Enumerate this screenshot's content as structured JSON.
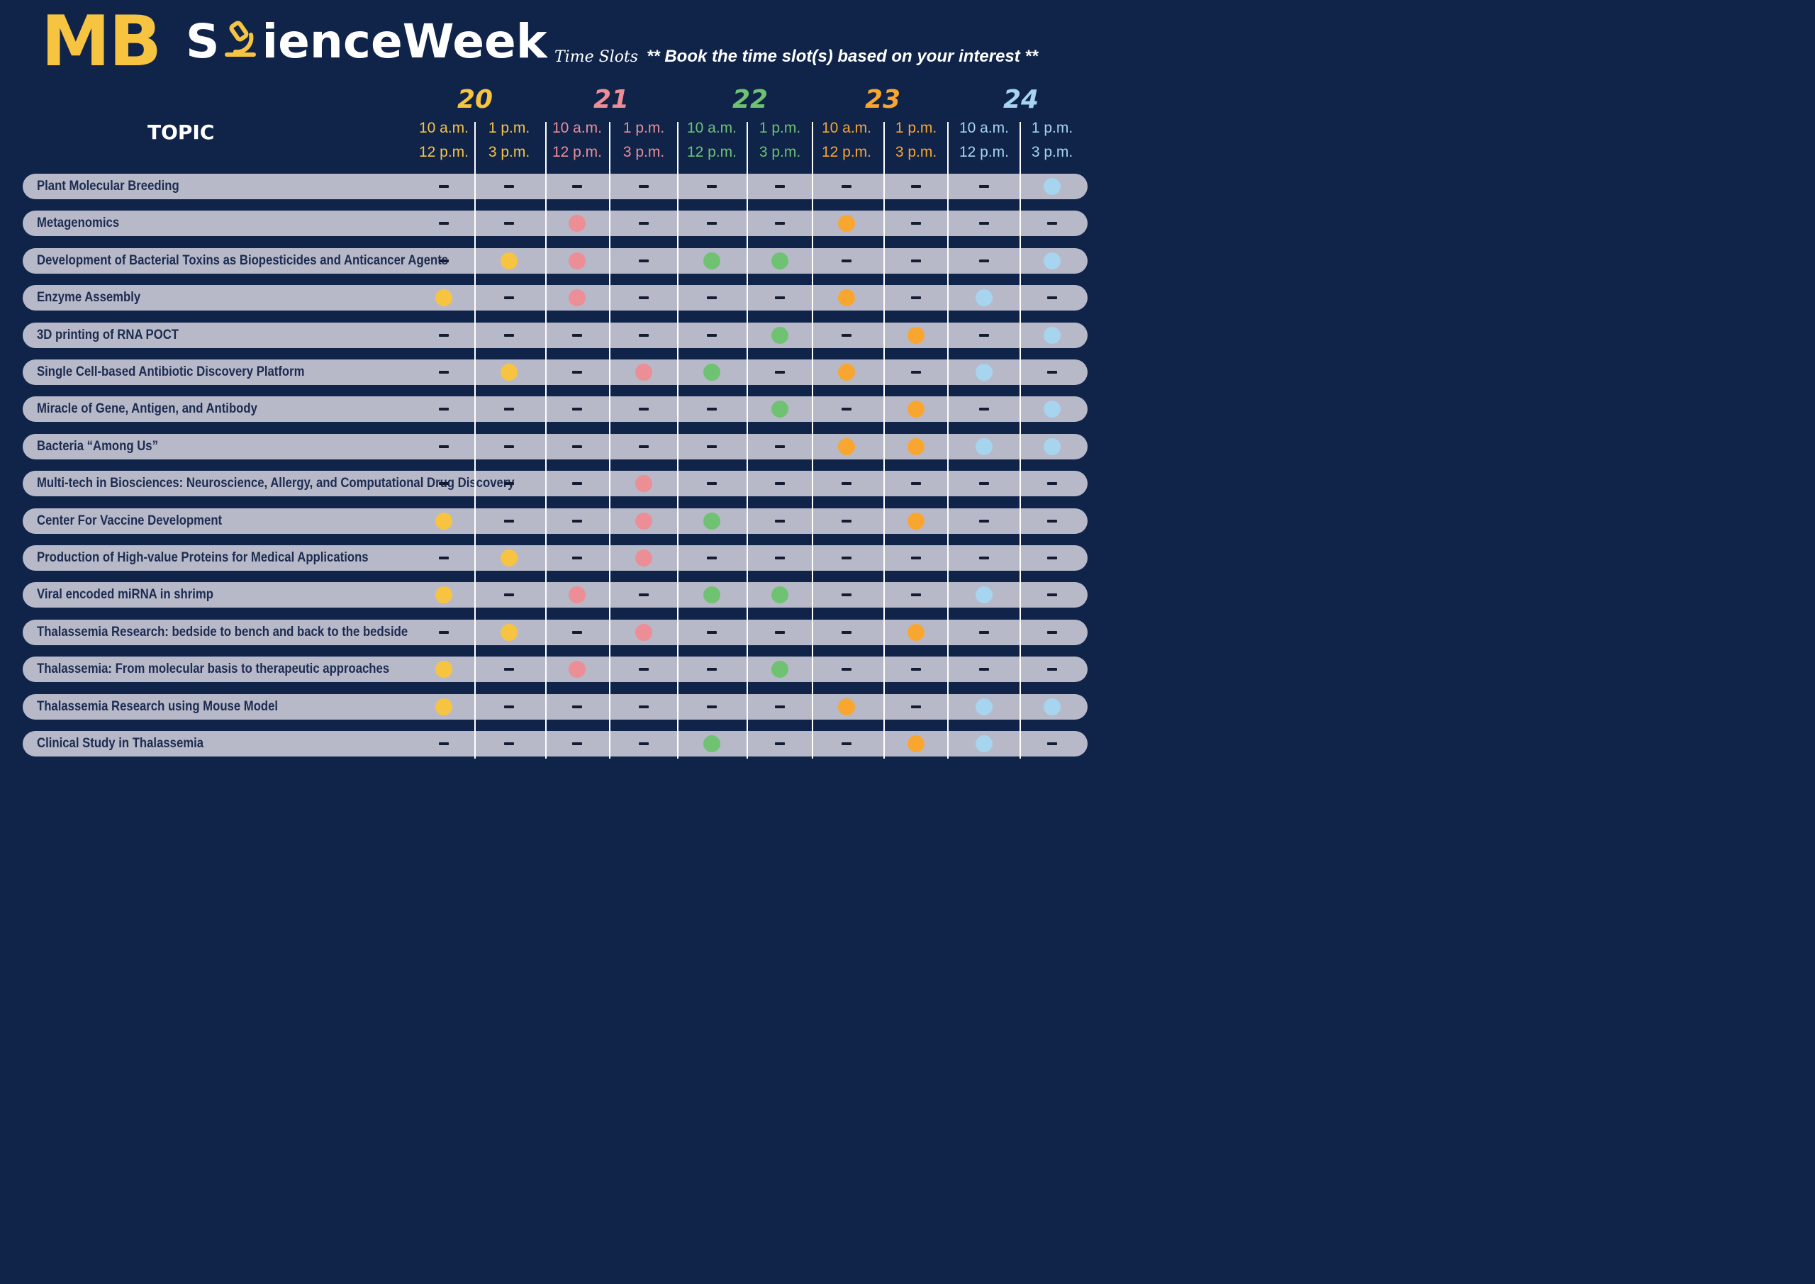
{
  "header": {
    "logo_mb": "MB",
    "logo_s": "S",
    "logo_rest": "ienceWeek",
    "subtitle": "Time Slots",
    "tagline": "** Book the time slot(s) based on your interest **"
  },
  "topic_heading": "TOPIC",
  "days": [
    {
      "label": "20",
      "color": "#f7c442"
    },
    {
      "label": "21",
      "color": "#ec8e96"
    },
    {
      "label": "22",
      "color": "#6ec272"
    },
    {
      "label": "23",
      "color": "#f9a631"
    },
    {
      "label": "24",
      "color": "#a7d4ee"
    }
  ],
  "slots": [
    {
      "start": "10 a.m.",
      "end": "12 p.m."
    },
    {
      "start": "1 p.m.",
      "end": "3 p.m."
    },
    {
      "start": "10 a.m.",
      "end": "12 p.m."
    },
    {
      "start": "1 p.m.",
      "end": "3 p.m."
    },
    {
      "start": "10 a.m.",
      "end": "12 p.m."
    },
    {
      "start": "1 p.m.",
      "end": "3 p.m."
    },
    {
      "start": "10 a.m.",
      "end": "12 p.m."
    },
    {
      "start": "1 p.m.",
      "end": "3 p.m."
    },
    {
      "start": "10 a.m.",
      "end": "12 p.m."
    },
    {
      "start": "1 p.m.",
      "end": "3 p.m."
    }
  ],
  "rows": [
    {
      "topic": "Plant Molecular Breeding",
      "slots": [
        0,
        0,
        0,
        0,
        0,
        0,
        0,
        0,
        0,
        1
      ]
    },
    {
      "topic": "Metagenomics",
      "slots": [
        0,
        0,
        1,
        0,
        0,
        0,
        1,
        0,
        0,
        0
      ]
    },
    {
      "topic": "Development of Bacterial Toxins as Biopesticides and Anticancer Agents",
      "slots": [
        0,
        1,
        1,
        0,
        1,
        1,
        0,
        0,
        0,
        1
      ]
    },
    {
      "topic": "Enzyme Assembly",
      "slots": [
        1,
        0,
        1,
        0,
        0,
        0,
        1,
        0,
        1,
        0
      ]
    },
    {
      "topic": "3D printing of RNA POCT",
      "slots": [
        0,
        0,
        0,
        0,
        0,
        1,
        0,
        1,
        0,
        1
      ]
    },
    {
      "topic": "Single Cell-based Antibiotic Discovery Platform",
      "slots": [
        0,
        1,
        0,
        1,
        1,
        0,
        1,
        0,
        1,
        0
      ]
    },
    {
      "topic": "Miracle of Gene, Antigen, and Antibody",
      "slots": [
        0,
        0,
        0,
        0,
        0,
        1,
        0,
        1,
        0,
        1
      ]
    },
    {
      "topic": "Bacteria “Among Us”",
      "slots": [
        0,
        0,
        0,
        0,
        0,
        0,
        1,
        1,
        1,
        1
      ]
    },
    {
      "topic": "Multi-tech in Biosciences: Neuroscience, Allergy, and Computational Drug Discovery",
      "slots": [
        0,
        0,
        0,
        1,
        0,
        0,
        0,
        0,
        0,
        0
      ]
    },
    {
      "topic": "Center For Vaccine Development",
      "slots": [
        1,
        0,
        0,
        1,
        1,
        0,
        0,
        1,
        0,
        0
      ]
    },
    {
      "topic": "Production of High-value Proteins for Medical Applications",
      "slots": [
        0,
        1,
        0,
        1,
        0,
        0,
        0,
        0,
        0,
        0
      ]
    },
    {
      "topic": "Viral encoded miRNA in shrimp",
      "slots": [
        1,
        0,
        1,
        0,
        1,
        1,
        0,
        0,
        1,
        0
      ]
    },
    {
      "topic": "Thalassemia Research: bedside to bench and back to the bedside",
      "slots": [
        0,
        1,
        0,
        1,
        0,
        0,
        0,
        1,
        0,
        0
      ]
    },
    {
      "topic": "Thalassemia: From molecular basis to therapeutic approaches",
      "slots": [
        1,
        0,
        1,
        0,
        0,
        1,
        0,
        0,
        0,
        0
      ]
    },
    {
      "topic": "Thalassemia Research using Mouse Model",
      "slots": [
        1,
        0,
        0,
        0,
        0,
        0,
        1,
        0,
        1,
        1
      ]
    },
    {
      "topic": "Clinical Study in Thalassemia",
      "slots": [
        0,
        0,
        0,
        0,
        1,
        0,
        0,
        1,
        1,
        0
      ]
    }
  ]
}
